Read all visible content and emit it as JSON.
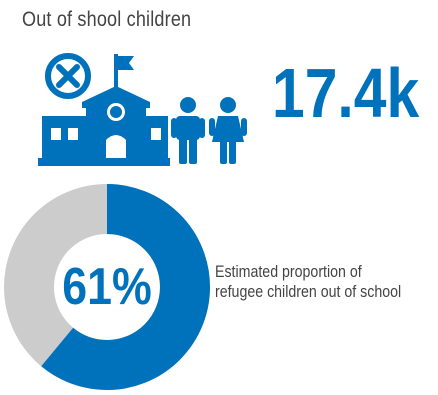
{
  "title": "Out of shool children",
  "stat": {
    "value": "17.4k"
  },
  "icons": {
    "school": "school-closed-icon",
    "children": "children-icon"
  },
  "donut": {
    "percent_label": "61%",
    "fraction": 0.61,
    "caption_line1": "Estimated proportion of",
    "caption_line2": "refugee children out of school"
  },
  "colors": {
    "primary": "#0072bc",
    "secondary": "#cccccc",
    "text": "#444444"
  }
}
